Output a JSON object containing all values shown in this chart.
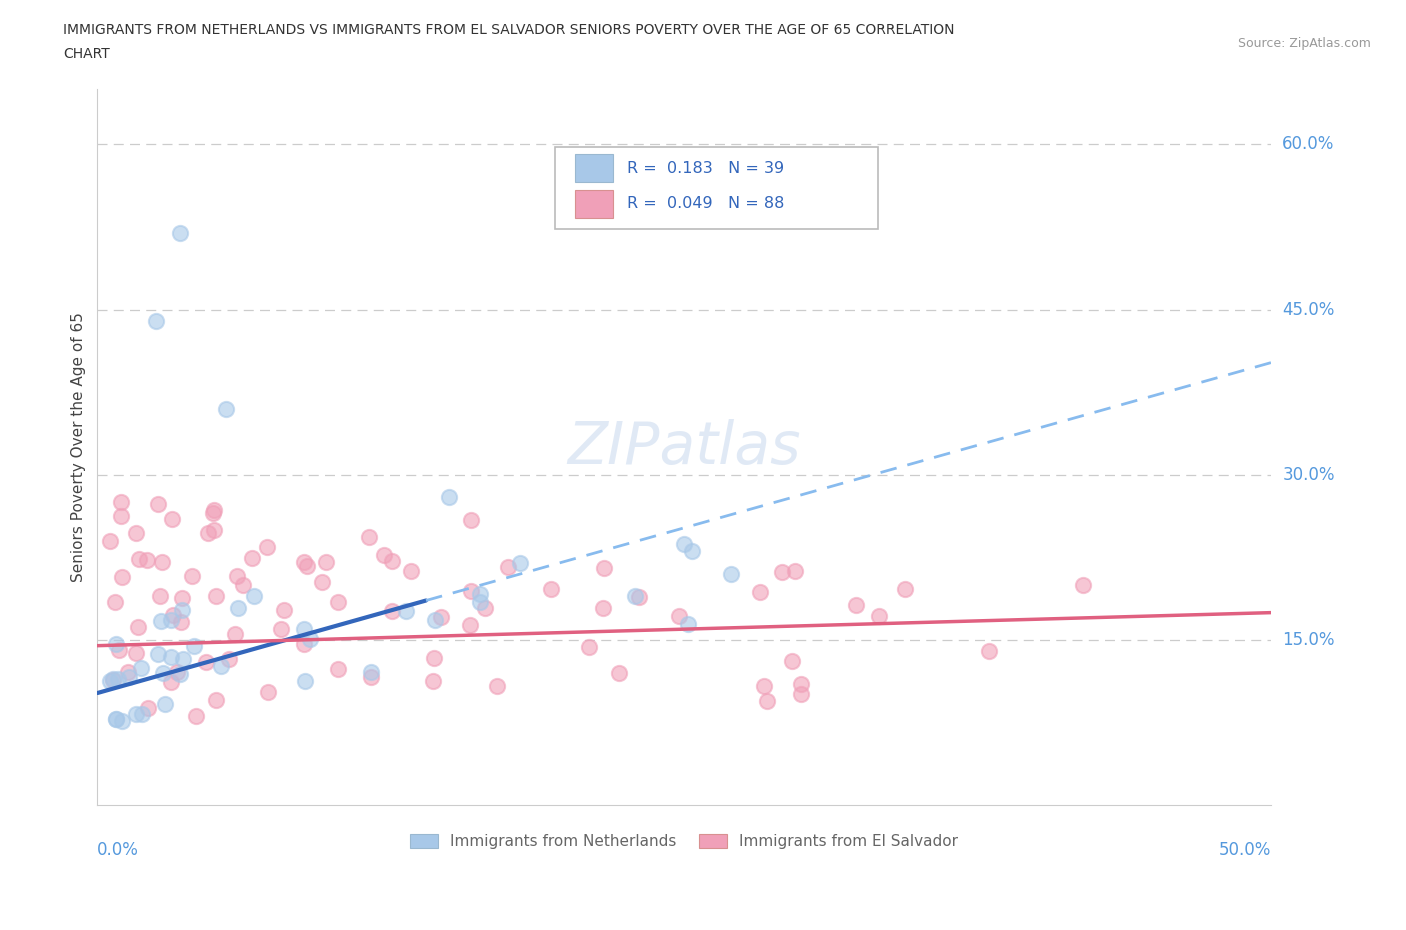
{
  "title_line1": "IMMIGRANTS FROM NETHERLANDS VS IMMIGRANTS FROM EL SALVADOR SENIORS POVERTY OVER THE AGE OF 65 CORRELATION",
  "title_line2": "CHART",
  "source_text": "Source: ZipAtlas.com",
  "xlabel_bottom_left": "0.0%",
  "xlabel_bottom_right": "50.0%",
  "ylabel": "Seniors Poverty Over the Age of 65",
  "ytick_labels": [
    "15.0%",
    "30.0%",
    "45.0%",
    "60.0%"
  ],
  "ytick_values": [
    0.15,
    0.3,
    0.45,
    0.6
  ],
  "xlim": [
    0.0,
    0.5
  ],
  "ylim": [
    0.0,
    0.65
  ],
  "color_netherlands": "#a8c8e8",
  "color_elsalvador": "#f0a0b8",
  "trendline_netherlands_solid": "#3366bb",
  "trendline_netherlands_dashed": "#88bbee",
  "trendline_elsalvador": "#e06080",
  "watermark_text": "ZIPatlas",
  "legend_label_neth": "R =  0.183   N = 39",
  "legend_label_salv": "R =  0.049   N = 88",
  "bottom_legend_neth": "Immigrants from Netherlands",
  "bottom_legend_salv": "Immigrants from El Salvador",
  "neth_trendline_x": [
    0.0,
    0.15,
    0.5
  ],
  "neth_trendline_y_solid_end": 0.15,
  "neth_trendline_start_y": 0.105,
  "neth_trendline_slope": 0.6,
  "salv_trendline_start_y": 0.145,
  "salv_trendline_end_y": 0.175
}
